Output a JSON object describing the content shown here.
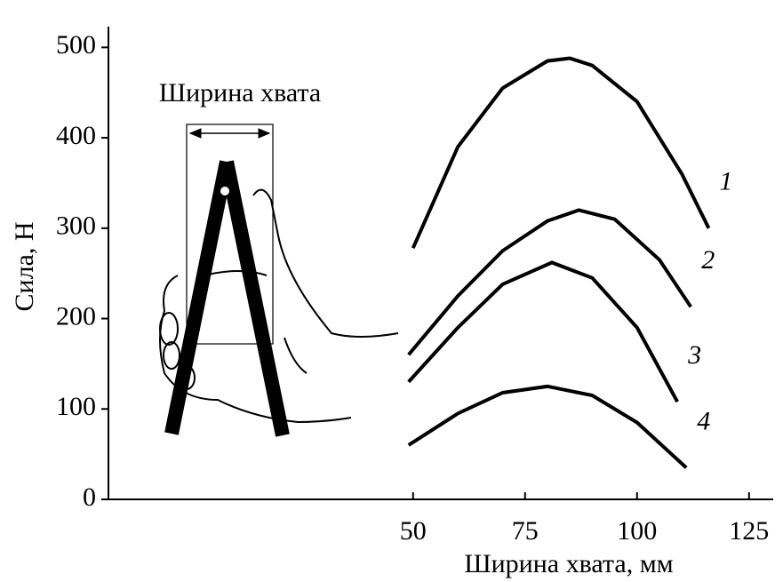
{
  "chart_data": {
    "type": "line",
    "annotation": "Ширина хвата",
    "x_label": "Ширина хвата, мм",
    "y_label": "Сила, Н",
    "xlim": [
      -18,
      130
    ],
    "xticks": [
      50,
      75,
      100,
      125
    ],
    "ylim": [
      0,
      520
    ],
    "yticks": [
      0,
      100,
      200,
      300,
      400,
      500
    ],
    "color": "#000000",
    "series": [
      {
        "name": "1",
        "x": [
          50,
          60,
          70,
          80,
          85,
          90,
          100,
          110,
          116
        ],
        "values": [
          278,
          390,
          455,
          485,
          488,
          480,
          440,
          360,
          300
        ]
      },
      {
        "name": "2",
        "x": [
          49,
          60,
          70,
          80,
          87,
          95,
          105,
          112
        ],
        "values": [
          160,
          225,
          275,
          308,
          320,
          310,
          265,
          213
        ]
      },
      {
        "name": "3",
        "x": [
          49,
          60,
          70,
          81,
          90,
          100,
          109
        ],
        "values": [
          130,
          190,
          238,
          262,
          245,
          190,
          108
        ]
      },
      {
        "name": "4",
        "x": [
          49,
          60,
          70,
          80,
          90,
          100,
          111
        ],
        "values": [
          60,
          95,
          118,
          125,
          115,
          85,
          35
        ]
      }
    ]
  }
}
